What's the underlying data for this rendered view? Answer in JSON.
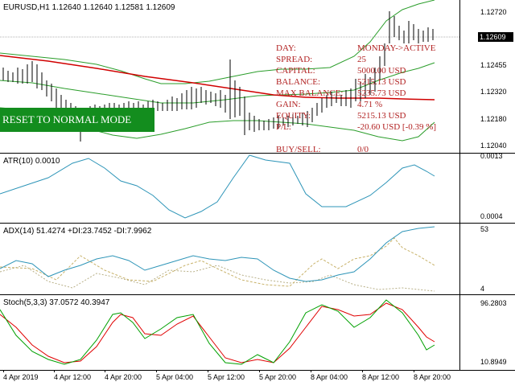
{
  "main_chart": {
    "symbol_label": "EURUSD,H1  1.12640 1.12640 1.12581 1.12609",
    "current_price": "1.12609",
    "ticks": [
      "1.12720",
      "1.12455",
      "1.12320",
      "1.12180",
      "1.12040"
    ],
    "colors": {
      "bands": "#2a9d2a",
      "ma": "#d00000",
      "bars": "#000000"
    }
  },
  "stats_panel": {
    "rows": [
      {
        "label": "DAY:",
        "value": "MONDAY->ACTIVE"
      },
      {
        "label": "SPREAD:",
        "value": "25"
      },
      {
        "label": "CAPITAL:",
        "value": "5000.00 USD"
      },
      {
        "label": "BALANCE:",
        "value": "5215.13 USD"
      },
      {
        "label": "MAX BALANCE:",
        "value": "5235.73 USD"
      },
      {
        "label": "GAIN:",
        "value": "4.71 %"
      },
      {
        "label": "EQUITY:",
        "value": "5215.13 USD"
      },
      {
        "label": "P/L:",
        "value": "-20.60 USD  [-0.39 %]"
      },
      {
        "label": "BUY/SELL:",
        "value": "0/0"
      }
    ],
    "color": "#b22222"
  },
  "reset_button": {
    "label": "RESET TO NORMAL MODE NOW",
    "color": "#138d1e"
  },
  "atr_panel": {
    "label": "ATR(10) 0.0010",
    "ticks": [
      "0.0013",
      "0.0004"
    ],
    "color": "#2e95b8"
  },
  "adx_panel": {
    "label": "ADX(14) 51.4274 +DI:23.7452 -DI:7.9962",
    "ticks": [
      "53",
      "4"
    ],
    "colors": {
      "adx": "#2e95b8",
      "plus_di": "#c8b26a",
      "minus_di": "#b8b088"
    }
  },
  "stoch_panel": {
    "label": "Stoch(5,3,3) 37.0572 40.3947",
    "ticks": [
      "96.2803",
      "10.8949"
    ],
    "colors": {
      "main": "#00a000",
      "signal": "#e00000"
    }
  },
  "time_axis": [
    "4 Apr 2019",
    "4 Apr 12:00",
    "4 Apr 20:00",
    "5 Apr 04:00",
    "5 Apr 12:00",
    "5 Apr 20:00",
    "8 Apr 04:00",
    "8 Apr 12:00",
    "8 Apr 20:00"
  ]
}
